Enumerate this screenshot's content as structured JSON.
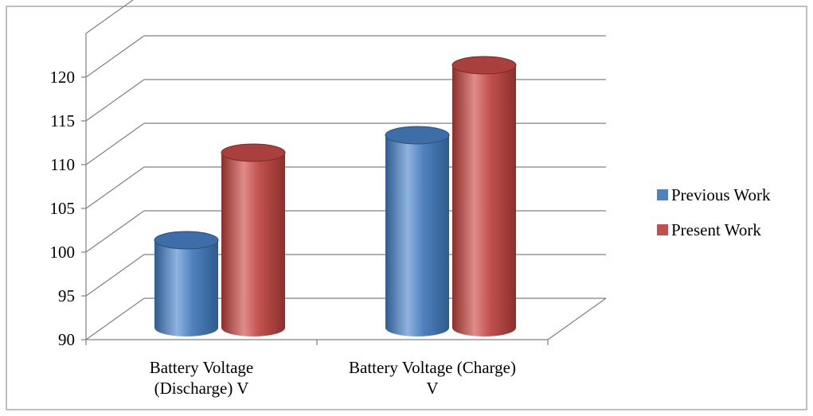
{
  "chart_data": {
    "type": "bar",
    "title": "",
    "xlabel": "",
    "ylabel": "",
    "categories": [
      [
        "Battery Voltage",
        "(Discharge) V"
      ],
      [
        "Battery Voltage (Charge)",
        "V"
      ]
    ],
    "series": [
      {
        "name": "Previous Work",
        "color": "#4f81bd",
        "values": [
          100,
          112
        ]
      },
      {
        "name": "Present Work",
        "color": "#c0504d",
        "values": [
          110,
          120
        ]
      }
    ],
    "ylim": [
      90,
      125
    ],
    "yticks": [
      90,
      95,
      100,
      105,
      110,
      115,
      120
    ],
    "grid": true,
    "legend": "right",
    "style": "3d-cylinder"
  }
}
